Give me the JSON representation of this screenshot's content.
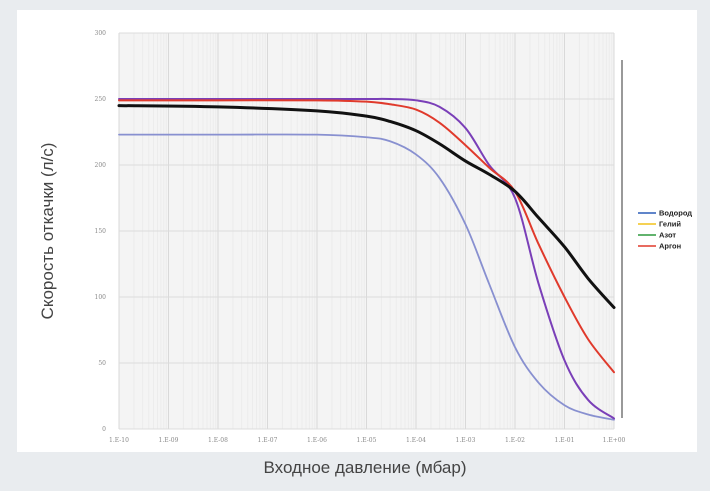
{
  "chart_data": {
    "type": "line",
    "xlabel": "Входное давление (мбар)",
    "ylabel": "Скорость откачки (л/с)",
    "x_scale": "log",
    "xlim": [
      1e-10,
      1
    ],
    "ylim": [
      0,
      300
    ],
    "x_ticks": [
      {
        "value": 1e-10,
        "label": "1.E-10"
      },
      {
        "value": 1e-09,
        "label": "1.E-09"
      },
      {
        "value": 1e-08,
        "label": "1.E-08"
      },
      {
        "value": 1e-07,
        "label": "1.E-07"
      },
      {
        "value": 1e-06,
        "label": "1.E-06"
      },
      {
        "value": 1e-05,
        "label": "1.E-05"
      },
      {
        "value": 0.0001,
        "label": "1.E-04"
      },
      {
        "value": 0.001,
        "label": "1.E-03"
      },
      {
        "value": 0.01,
        "label": "1.E-02"
      },
      {
        "value": 0.1,
        "label": "1.E-01"
      },
      {
        "value": 1,
        "label": "1.E+00"
      }
    ],
    "y_ticks": [
      0,
      50,
      100,
      150,
      200,
      250,
      300
    ],
    "grid": true,
    "legend_position": "right",
    "legend": [
      {
        "name": "Водород",
        "color": "#2b5db8"
      },
      {
        "name": "Гелий",
        "color": "#f2c21b"
      },
      {
        "name": "Азот",
        "color": "#2e9a3e"
      },
      {
        "name": "Аргон",
        "color": "#e03a2c"
      }
    ],
    "series": [
      {
        "color": "#8890d0",
        "x": [
          1e-10,
          1e-08,
          1e-06,
          1e-05,
          3e-05,
          0.0001,
          0.0003,
          0.001,
          0.003,
          0.01,
          0.03,
          0.1,
          0.3,
          1
        ],
        "values": [
          223,
          223,
          223,
          221,
          218,
          208,
          190,
          155,
          110,
          62,
          35,
          18,
          11,
          7
        ]
      },
      {
        "color": "#7a3fb8",
        "x": [
          1e-10,
          1e-08,
          1e-06,
          1e-05,
          3e-05,
          0.0001,
          0.0003,
          0.001,
          0.003,
          0.01,
          0.03,
          0.1,
          0.3,
          1
        ],
        "values": [
          250,
          250,
          250,
          250,
          250,
          249,
          244,
          228,
          200,
          175,
          110,
          52,
          22,
          8
        ]
      },
      {
        "color": "#e03a2c",
        "x": [
          1e-10,
          1e-08,
          1e-06,
          1e-05,
          3e-05,
          0.0001,
          0.0003,
          0.001,
          0.003,
          0.01,
          0.03,
          0.1,
          0.3,
          1
        ],
        "values": [
          249,
          249,
          249,
          248,
          246,
          242,
          232,
          215,
          198,
          180,
          140,
          100,
          68,
          43
        ]
      },
      {
        "color": "#111111",
        "x": [
          1e-10,
          1e-08,
          1e-06,
          1e-05,
          3e-05,
          0.0001,
          0.0003,
          0.001,
          0.003,
          0.01,
          0.03,
          0.1,
          0.3,
          1
        ],
        "values": [
          245,
          244,
          241,
          237,
          233,
          226,
          216,
          203,
          193,
          180,
          160,
          138,
          114,
          92
        ]
      }
    ]
  }
}
